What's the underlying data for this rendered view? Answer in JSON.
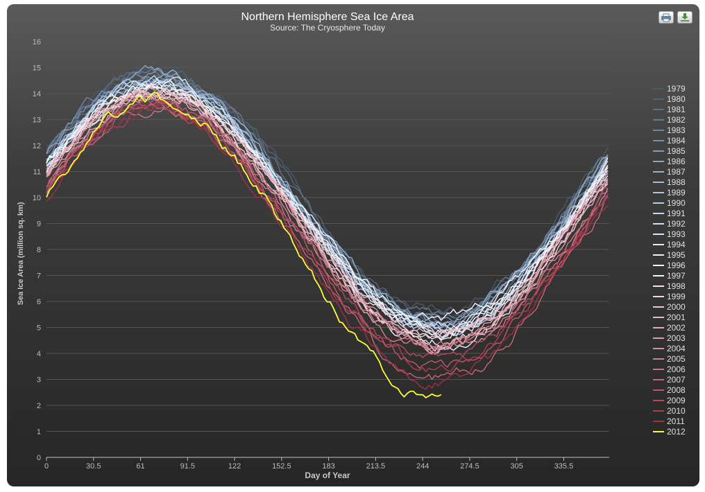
{
  "chart_data": {
    "type": "line",
    "title": "Northern Hemisphere Sea Ice Area",
    "subtitle": "Source: The Cryosphere Today",
    "xlabel": "Day of Year",
    "ylabel": "Sea Ice Area (million sq. km)",
    "xlim": [
      0,
      365
    ],
    "ylim": [
      0,
      16
    ],
    "x_ticks": [
      "0",
      "30.5",
      "61",
      "91.5",
      "122",
      "152.5",
      "183",
      "213.5",
      "244",
      "274.5",
      "305",
      "335.5"
    ],
    "y_ticks": [
      "0",
      "1",
      "2",
      "3",
      "4",
      "5",
      "6",
      "7",
      "8",
      "9",
      "10",
      "11",
      "12",
      "13",
      "14",
      "15",
      "16"
    ],
    "grid": true,
    "legend_position": "right",
    "series": [
      {
        "name": "1979",
        "color": "#4a5a6c",
        "min": 5.6,
        "max": 14.9
      },
      {
        "name": "1980",
        "color": "#536579",
        "min": 5.5,
        "max": 14.8
      },
      {
        "name": "1981",
        "color": "#5c7086",
        "min": 5.3,
        "max": 14.8
      },
      {
        "name": "1982",
        "color": "#657b93",
        "min": 5.4,
        "max": 14.8
      },
      {
        "name": "1983",
        "color": "#6e86a0",
        "min": 5.3,
        "max": 14.7
      },
      {
        "name": "1984",
        "color": "#7891ad",
        "min": 5.2,
        "max": 14.6
      },
      {
        "name": "1985",
        "color": "#829cba",
        "min": 5.1,
        "max": 14.6
      },
      {
        "name": "1986",
        "color": "#8ca7c6",
        "min": 5.2,
        "max": 14.7
      },
      {
        "name": "1987",
        "color": "#97b2d2",
        "min": 5.2,
        "max": 14.6
      },
      {
        "name": "1988",
        "color": "#a2bddd",
        "min": 5.1,
        "max": 14.5
      },
      {
        "name": "1989",
        "color": "#adc7e6",
        "min": 5.0,
        "max": 14.3
      },
      {
        "name": "1990",
        "color": "#b8d0ee",
        "min": 4.8,
        "max": 14.4
      },
      {
        "name": "1991",
        "color": "#c3d8f3",
        "min": 4.9,
        "max": 14.3
      },
      {
        "name": "1992",
        "color": "#cfe0f7",
        "min": 5.0,
        "max": 14.4
      },
      {
        "name": "1993",
        "color": "#dae8fa",
        "min": 4.8,
        "max": 14.4
      },
      {
        "name": "1994",
        "color": "#e5effc",
        "min": 4.9,
        "max": 14.3
      },
      {
        "name": "1995",
        "color": "#eff5fd",
        "min": 4.5,
        "max": 14.2
      },
      {
        "name": "1996",
        "color": "#f8faff",
        "min": 5.3,
        "max": 14.2
      },
      {
        "name": "1997",
        "color": "#fbf4f6",
        "min": 4.9,
        "max": 14.2
      },
      {
        "name": "1998",
        "color": "#f8e6ea",
        "min": 4.7,
        "max": 14.1
      },
      {
        "name": "1999",
        "color": "#f4d6dd",
        "min": 4.4,
        "max": 14.0
      },
      {
        "name": "2000",
        "color": "#f0c8d0",
        "min": 4.6,
        "max": 14.0
      },
      {
        "name": "2001",
        "color": "#ebbac4",
        "min": 4.7,
        "max": 14.0
      },
      {
        "name": "2002",
        "color": "#e6acb8",
        "min": 4.3,
        "max": 13.9
      },
      {
        "name": "2003",
        "color": "#e09eac",
        "min": 4.4,
        "max": 14.0
      },
      {
        "name": "2004",
        "color": "#da909f",
        "min": 4.3,
        "max": 13.9
      },
      {
        "name": "2005",
        "color": "#d48292",
        "min": 4.1,
        "max": 13.7
      },
      {
        "name": "2006",
        "color": "#cd7485",
        "min": 4.2,
        "max": 13.5
      },
      {
        "name": "2007",
        "color": "#c66677",
        "min": 3.0,
        "max": 13.5
      },
      {
        "name": "2008",
        "color": "#bf586a",
        "min": 3.4,
        "max": 13.7
      },
      {
        "name": "2009",
        "color": "#b84a5c",
        "min": 3.7,
        "max": 13.6
      },
      {
        "name": "2010",
        "color": "#b03c4f",
        "min": 3.5,
        "max": 13.4
      },
      {
        "name": "2011",
        "color": "#a82e42",
        "min": 3.0,
        "max": 13.3
      },
      {
        "name": "2012",
        "color": "#ffff33",
        "min": 2.25,
        "max": 13.7,
        "end_day": 256
      }
    ]
  }
}
